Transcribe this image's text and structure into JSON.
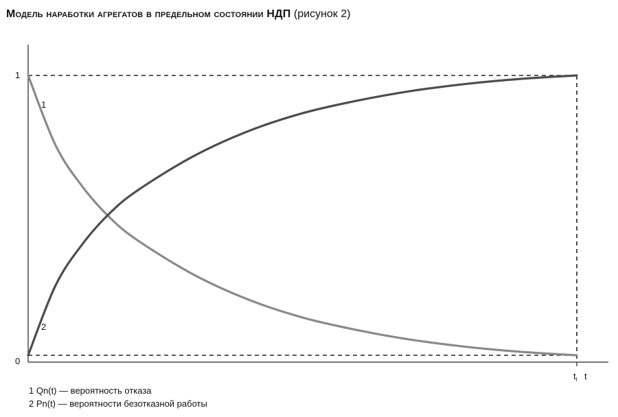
{
  "title": {
    "bold": "Модель наработки агрегатов в предельном состоянии НДП",
    "normal": "(рисунок 2)"
  },
  "legend": [
    "1 Qn(t) — вероятность отказа",
    "2 Pn(t) — вероятности безотказной работы"
  ],
  "chart_data": {
    "type": "line",
    "xlim": [
      0,
      1
    ],
    "ylim": [
      0,
      1
    ],
    "y_ticks": [
      "0",
      "1"
    ],
    "x_ticks": [
      {
        "label": "t",
        "sub": "l"
      },
      {
        "label": "t"
      }
    ],
    "series": [
      {
        "name": "1",
        "x": [
          0,
          0.05,
          0.1,
          0.15,
          0.2,
          0.3,
          0.4,
          0.5,
          0.6,
          0.7,
          0.8,
          0.9,
          1.0
        ],
        "y": [
          1.0,
          0.75,
          0.6,
          0.49,
          0.41,
          0.29,
          0.2,
          0.135,
          0.09,
          0.055,
          0.03,
          0.012,
          0.0
        ],
        "color": "#8a8a8a"
      },
      {
        "name": "2",
        "x": [
          0,
          0.05,
          0.1,
          0.15,
          0.2,
          0.3,
          0.4,
          0.5,
          0.6,
          0.7,
          0.8,
          0.9,
          1.0
        ],
        "y": [
          0.0,
          0.25,
          0.4,
          0.51,
          0.59,
          0.71,
          0.8,
          0.865,
          0.91,
          0.945,
          0.97,
          0.988,
          1.0
        ],
        "color": "#4d4d4d"
      }
    ],
    "reference_lines": [
      "y = 1",
      "y = 0",
      "x = t_l"
    ]
  }
}
